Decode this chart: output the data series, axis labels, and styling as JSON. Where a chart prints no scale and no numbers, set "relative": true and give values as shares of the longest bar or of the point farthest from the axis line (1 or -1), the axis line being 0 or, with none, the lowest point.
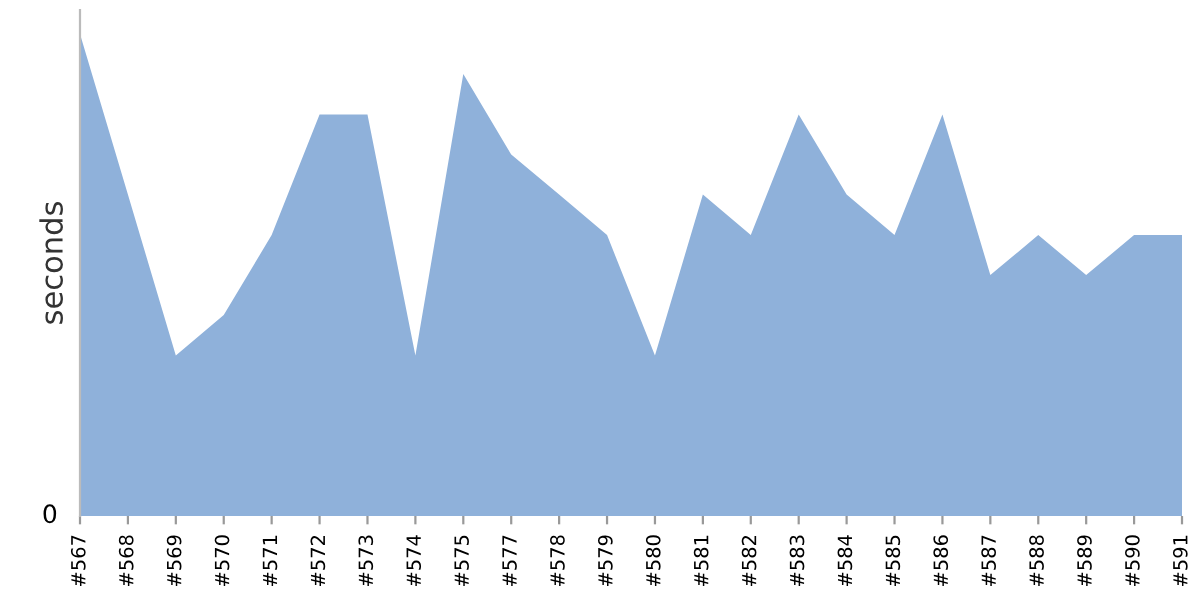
{
  "chart_data": {
    "type": "area",
    "ylabel": "seconds",
    "relative": true,
    "annotations": [
      "0"
    ],
    "categories": [
      "#567",
      "#568",
      "#569",
      "#570",
      "#571",
      "#572",
      "#573",
      "#574",
      "#575",
      "#577",
      "#578",
      "#579",
      "#580",
      "#581",
      "#582",
      "#583",
      "#584",
      "#585",
      "#586",
      "#587",
      "#588",
      "#589",
      "#590",
      "#591"
    ],
    "series": [
      {
        "color": "#8fb1da",
        "values": [
          1.0,
          0.667,
          0.333,
          0.417,
          0.583,
          0.833,
          0.833,
          0.333,
          0.917,
          0.75,
          0.667,
          0.583,
          0.333,
          0.667,
          0.583,
          0.833,
          0.667,
          0.583,
          0.833,
          0.5,
          0.583,
          0.5,
          0.583,
          0.583
        ]
      }
    ]
  }
}
